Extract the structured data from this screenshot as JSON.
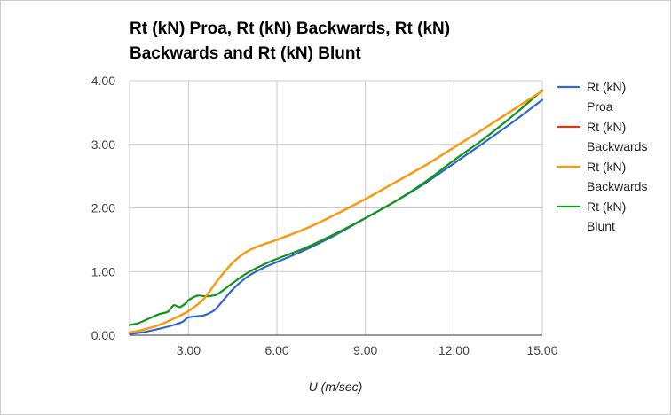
{
  "chart_data": {
    "type": "line",
    "title_lines": [
      "Rt (kN) Proa, Rt (kN) Backwards, Rt (kN)",
      "Backwards and Rt (kN) Blunt"
    ],
    "xlabel": "U (m/sec)",
    "ylabel": "",
    "xlim": [
      1.0,
      15.0
    ],
    "ylim": [
      0.0,
      4.0
    ],
    "xticks": [
      3,
      6,
      9,
      12,
      15
    ],
    "xtick_labels": [
      "3.00",
      "6.00",
      "9.00",
      "12.00",
      "15.00"
    ],
    "yticks": [
      0,
      1,
      2,
      3,
      4
    ],
    "ytick_labels": [
      "0.00",
      "1.00",
      "2.00",
      "3.00",
      "4.00"
    ],
    "grid": true,
    "legend_position": "right",
    "series": [
      {
        "name_lines": [
          "Rt (kN)",
          "Proa"
        ],
        "color": "#3366cc",
        "x": [
          1.0,
          1.5,
          2.0,
          2.5,
          2.8,
          3.0,
          3.5,
          3.8,
          4.0,
          4.5,
          5.0,
          5.5,
          6.0,
          7.0,
          8.0,
          9.0,
          10.0,
          11.0,
          12.0,
          13.0,
          14.0,
          15.0
        ],
        "y": [
          0.02,
          0.05,
          0.1,
          0.16,
          0.21,
          0.28,
          0.31,
          0.37,
          0.45,
          0.72,
          0.92,
          1.05,
          1.15,
          1.35,
          1.58,
          1.84,
          2.1,
          2.38,
          2.7,
          3.02,
          3.35,
          3.7
        ]
      },
      {
        "name_lines": [
          "Rt (kN)",
          "Backwards"
        ],
        "color": "#dc3912",
        "x": [
          1.0,
          1.5,
          2.0,
          2.5,
          3.0,
          3.5,
          4.0,
          4.5,
          5.0,
          5.5,
          6.0,
          7.0,
          8.0,
          9.0,
          10.0,
          11.0,
          12.0,
          13.0,
          14.0,
          15.0
        ],
        "y": [
          0.04,
          0.09,
          0.16,
          0.26,
          0.38,
          0.56,
          0.87,
          1.14,
          1.32,
          1.42,
          1.5,
          1.68,
          1.9,
          2.14,
          2.4,
          2.66,
          2.95,
          3.24,
          3.54,
          3.84
        ]
      },
      {
        "name_lines": [
          "Rt (kN)",
          "Backwards"
        ],
        "color": "#ff9900",
        "x": [
          1.0,
          1.5,
          2.0,
          2.5,
          3.0,
          3.5,
          4.0,
          4.5,
          5.0,
          5.5,
          6.0,
          7.0,
          8.0,
          9.0,
          10.0,
          11.0,
          12.0,
          13.0,
          14.0,
          15.0
        ],
        "y": [
          0.04,
          0.09,
          0.16,
          0.26,
          0.38,
          0.56,
          0.87,
          1.14,
          1.32,
          1.42,
          1.5,
          1.68,
          1.9,
          2.14,
          2.4,
          2.66,
          2.95,
          3.24,
          3.54,
          3.84
        ]
      },
      {
        "name_lines": [
          "Rt (kN)",
          "Blunt"
        ],
        "color": "#109618",
        "x": [
          1.0,
          1.3,
          1.6,
          2.0,
          2.3,
          2.5,
          2.7,
          2.9,
          3.0,
          3.3,
          3.6,
          3.8,
          4.0,
          4.5,
          5.0,
          5.5,
          6.0,
          7.0,
          8.0,
          9.0,
          10.0,
          11.0,
          12.0,
          13.0,
          14.0,
          15.0
        ],
        "y": [
          0.16,
          0.19,
          0.25,
          0.33,
          0.37,
          0.47,
          0.44,
          0.5,
          0.55,
          0.62,
          0.61,
          0.62,
          0.65,
          0.82,
          0.98,
          1.1,
          1.2,
          1.38,
          1.6,
          1.84,
          2.1,
          2.4,
          2.75,
          3.08,
          3.45,
          3.85
        ]
      }
    ]
  }
}
